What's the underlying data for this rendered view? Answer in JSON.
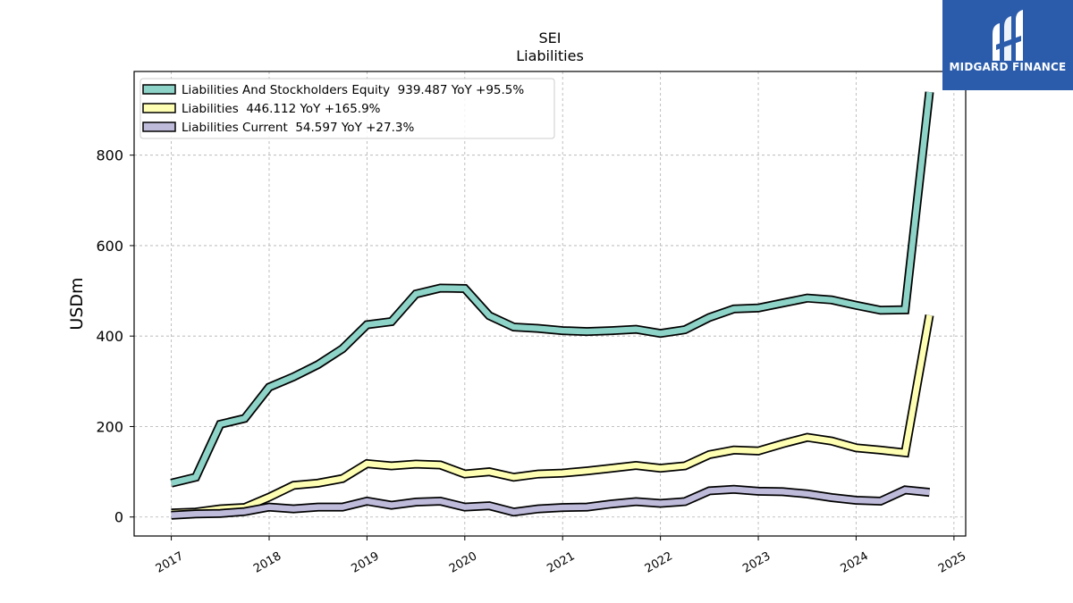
{
  "chart_data": {
    "type": "line",
    "title": "SEI",
    "subtitle": "Liabilities",
    "ylabel": "USDm",
    "xlabel": "",
    "ylim": [
      -42,
      985
    ],
    "xlim": [
      2016.62,
      2025.12
    ],
    "yticks": [
      0,
      200,
      400,
      600,
      800
    ],
    "xticks": [
      2017,
      2018,
      2019,
      2020,
      2021,
      2022,
      2023,
      2024,
      2025
    ],
    "grid": true,
    "legend_position": "top-left",
    "x": [
      2017.0,
      2017.25,
      2017.5,
      2017.75,
      2018.0,
      2018.25,
      2018.5,
      2018.75,
      2019.0,
      2019.25,
      2019.5,
      2019.75,
      2020.0,
      2020.25,
      2020.5,
      2020.75,
      2021.0,
      2021.25,
      2021.5,
      2021.75,
      2022.0,
      2022.25,
      2022.5,
      2022.75,
      2023.0,
      2023.25,
      2023.5,
      2023.75,
      2024.0,
      2024.25,
      2024.5,
      2024.75
    ],
    "series": [
      {
        "name": "Liabilities And Stockholders Equity  939.487 YoY +95.5%",
        "color": "#8dd3c7",
        "values": [
          75,
          88,
          205,
          218,
          287,
          310,
          337,
          372,
          425,
          432,
          493,
          506,
          505,
          445,
          420,
          417,
          412,
          410,
          412,
          415,
          406,
          414,
          441,
          460,
          462,
          473,
          484,
          480,
          468,
          457,
          458,
          939.487
        ]
      },
      {
        "name": "Liabilities  446.112 YoY +165.9%",
        "color": "#ffffb3",
        "values": [
          9,
          11,
          18,
          21,
          44,
          70,
          75,
          85,
          118,
          113,
          117,
          115,
          95,
          100,
          88,
          95,
          97,
          102,
          108,
          114,
          108,
          113,
          138,
          148,
          146,
          162,
          176,
          168,
          153,
          148,
          142,
          446.112
        ]
      },
      {
        "name": "Liabilities Current  54.597 YoY +27.3%",
        "color": "#bebada",
        "values": [
          4,
          7,
          8,
          12,
          22,
          18,
          22,
          22,
          35,
          26,
          33,
          35,
          22,
          25,
          11,
          18,
          21,
          22,
          29,
          34,
          30,
          34,
          58,
          61,
          57,
          56,
          51,
          43,
          37,
          35,
          60,
          54.597
        ]
      }
    ]
  },
  "logo": {
    "text": "MIDGARD FINANCE"
  }
}
